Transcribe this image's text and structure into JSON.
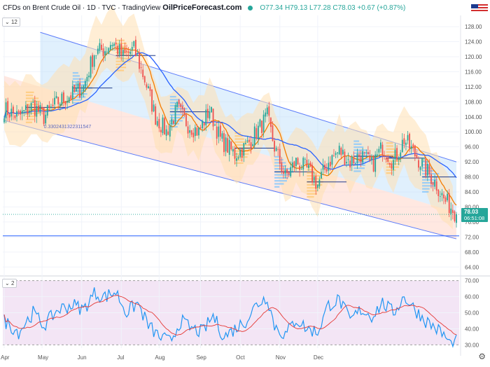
{
  "header": {
    "title": "CFDs on Brent Crude Oil · 1D · TVC · TradingView",
    "logo": "OilPriceForecast.com",
    "ohlc": "O77.34 H79.13 L77.28 C78.03 +0.67 (+0.87%)"
  },
  "badges": {
    "main_pane": "12",
    "rsi_pane": "2"
  },
  "price_label": {
    "price": "78.03",
    "timer": "06:51:08"
  },
  "fib_label": "0.3302431322311547",
  "chart_data": [
    {
      "type": "candlestick",
      "title": "CFDs on Brent Crude Oil · 1D · TVC",
      "x_ticks": [
        "Apr",
        "May",
        "Jun",
        "Jul",
        "Aug",
        "Sep",
        "Oct",
        "Nov",
        "Dec"
      ],
      "y_ticks": [
        "128.00",
        "124.00",
        "120.00",
        "116.00",
        "112.00",
        "108.00",
        "104.00",
        "100.00",
        "96.00",
        "92.00",
        "88.00",
        "84.00",
        "80.00",
        "76.00",
        "72.00",
        "68.00",
        "64.00"
      ],
      "ylim": [
        62,
        131
      ],
      "last_price": 78.03,
      "horizontal_line": 72.3,
      "close_keypoints": [
        {
          "x": 0,
          "y": 106
        },
        {
          "x": 8,
          "y": 104
        },
        {
          "x": 16,
          "y": 107
        },
        {
          "x": 22,
          "y": 104
        },
        {
          "x": 30,
          "y": 108
        },
        {
          "x": 38,
          "y": 110
        },
        {
          "x": 44,
          "y": 112
        },
        {
          "x": 50,
          "y": 121
        },
        {
          "x": 56,
          "y": 122
        },
        {
          "x": 60,
          "y": 124
        },
        {
          "x": 66,
          "y": 120
        },
        {
          "x": 72,
          "y": 122
        },
        {
          "x": 78,
          "y": 114
        },
        {
          "x": 84,
          "y": 104
        },
        {
          "x": 90,
          "y": 100
        },
        {
          "x": 96,
          "y": 106
        },
        {
          "x": 102,
          "y": 102
        },
        {
          "x": 108,
          "y": 100
        },
        {
          "x": 114,
          "y": 106
        },
        {
          "x": 120,
          "y": 98
        },
        {
          "x": 128,
          "y": 94
        },
        {
          "x": 134,
          "y": 96
        },
        {
          "x": 140,
          "y": 100
        },
        {
          "x": 146,
          "y": 104
        },
        {
          "x": 150,
          "y": 96
        },
        {
          "x": 156,
          "y": 88
        },
        {
          "x": 162,
          "y": 92
        },
        {
          "x": 168,
          "y": 90
        },
        {
          "x": 174,
          "y": 86
        },
        {
          "x": 180,
          "y": 92
        },
        {
          "x": 186,
          "y": 95
        },
        {
          "x": 192,
          "y": 92
        },
        {
          "x": 198,
          "y": 94
        },
        {
          "x": 204,
          "y": 91
        },
        {
          "x": 210,
          "y": 96
        },
        {
          "x": 216,
          "y": 92
        },
        {
          "x": 222,
          "y": 98
        },
        {
          "x": 228,
          "y": 94
        },
        {
          "x": 234,
          "y": 90
        },
        {
          "x": 240,
          "y": 86
        },
        {
          "x": 244,
          "y": 82
        },
        {
          "x": 248,
          "y": 80
        },
        {
          "x": 251,
          "y": 78.03
        }
      ],
      "regression_channel": {
        "upper": [
          [
            20,
            126.5
          ],
          [
            251,
            92
          ]
        ],
        "middle": [
          [
            20,
            112
          ],
          [
            251,
            78.5
          ]
        ],
        "lower": [
          [
            0,
            103
          ],
          [
            251,
            71.5
          ]
        ]
      },
      "series": [
        {
          "name": "",
          "type": "candles",
          "up_color": "#26a69a",
          "down_color": "#ef5350"
        },
        {
          "name": "",
          "type": "moving_average",
          "color": "#f57c00",
          "period": 10
        },
        {
          "name": "",
          "type": "moving_average",
          "color": "#2962ff",
          "period": 30
        }
      ]
    },
    {
      "type": "line",
      "title": "",
      "y_ticks": [
        "70.00",
        "60.00",
        "50.00",
        "40.00",
        "30.00"
      ],
      "ylim": [
        28,
        72
      ],
      "band": [
        30,
        70
      ],
      "rsi_keypoints": [
        {
          "x": 0,
          "y": 45
        },
        {
          "x": 8,
          "y": 38
        },
        {
          "x": 16,
          "y": 50
        },
        {
          "x": 22,
          "y": 42
        },
        {
          "x": 30,
          "y": 52
        },
        {
          "x": 38,
          "y": 55
        },
        {
          "x": 44,
          "y": 52
        },
        {
          "x": 50,
          "y": 62
        },
        {
          "x": 56,
          "y": 60
        },
        {
          "x": 62,
          "y": 63
        },
        {
          "x": 68,
          "y": 50
        },
        {
          "x": 74,
          "y": 56
        },
        {
          "x": 80,
          "y": 42
        },
        {
          "x": 86,
          "y": 35
        },
        {
          "x": 92,
          "y": 32
        },
        {
          "x": 98,
          "y": 45
        },
        {
          "x": 104,
          "y": 40
        },
        {
          "x": 110,
          "y": 38
        },
        {
          "x": 116,
          "y": 48
        },
        {
          "x": 122,
          "y": 35
        },
        {
          "x": 128,
          "y": 40
        },
        {
          "x": 134,
          "y": 45
        },
        {
          "x": 140,
          "y": 55
        },
        {
          "x": 146,
          "y": 60
        },
        {
          "x": 150,
          "y": 42
        },
        {
          "x": 156,
          "y": 36
        },
        {
          "x": 162,
          "y": 46
        },
        {
          "x": 168,
          "y": 40
        },
        {
          "x": 174,
          "y": 38
        },
        {
          "x": 180,
          "y": 55
        },
        {
          "x": 186,
          "y": 58
        },
        {
          "x": 192,
          "y": 45
        },
        {
          "x": 198,
          "y": 52
        },
        {
          "x": 204,
          "y": 48
        },
        {
          "x": 210,
          "y": 56
        },
        {
          "x": 216,
          "y": 50
        },
        {
          "x": 222,
          "y": 60
        },
        {
          "x": 228,
          "y": 52
        },
        {
          "x": 234,
          "y": 45
        },
        {
          "x": 240,
          "y": 40
        },
        {
          "x": 244,
          "y": 36
        },
        {
          "x": 248,
          "y": 30
        },
        {
          "x": 251,
          "y": 32
        }
      ],
      "series": [
        {
          "name": "",
          "color": "#2196f3"
        },
        {
          "name": "",
          "color": "#e53935"
        }
      ]
    }
  ]
}
